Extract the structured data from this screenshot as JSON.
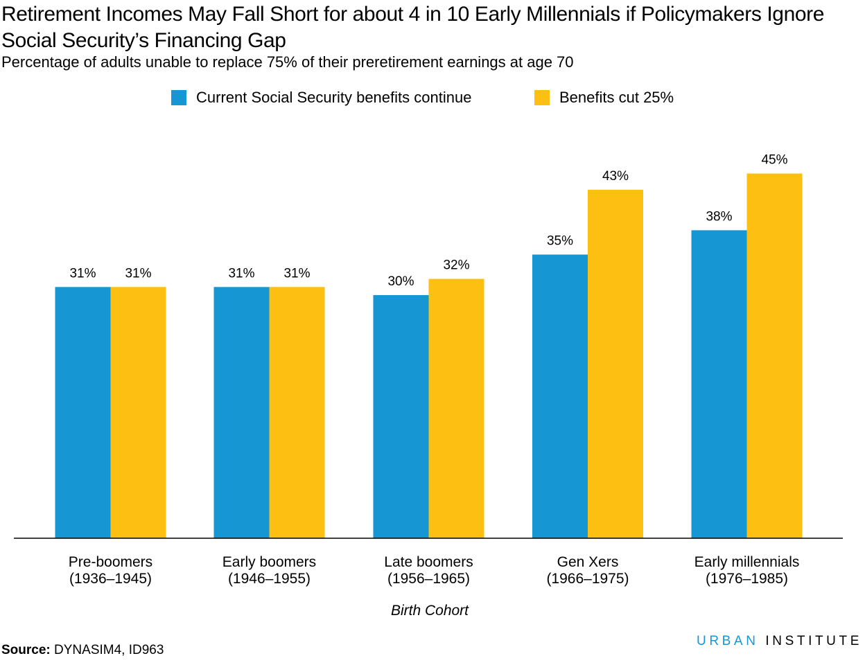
{
  "chart_data": {
    "type": "bar",
    "title": "Retirement Incomes May Fall Short for about 4 in 10 Early Millennials if Policymakers Ignore Social Security’s Financing Gap",
    "subtitle": "Percentage of adults unable to replace 75% of their preretirement earnings at age 70",
    "xlabel": "Birth Cohort",
    "ylabel": "",
    "ylim": [
      0,
      50
    ],
    "grid": false,
    "legend_position": "top",
    "categories": [
      {
        "name": "Pre-boomers",
        "range": "(1936–1945)"
      },
      {
        "name": "Early boomers",
        "range": "(1946–1955)"
      },
      {
        "name": "Late boomers",
        "range": "(1956–1965)"
      },
      {
        "name": "Gen Xers",
        "range": "(1966–1975)"
      },
      {
        "name": "Early millennials",
        "range": "(1976–1985)"
      }
    ],
    "series": [
      {
        "name": "Current Social Security benefits continue",
        "color": "#1696d2",
        "values": [
          31,
          31,
          30,
          35,
          38
        ],
        "labels": [
          "31%",
          "31%",
          "30%",
          "35%",
          "38%"
        ]
      },
      {
        "name": "Benefits cut 25%",
        "color": "#fdbf11",
        "values": [
          31,
          31,
          32,
          43,
          45
        ],
        "labels": [
          "31%",
          "31%",
          "32%",
          "43%",
          "45%"
        ]
      }
    ]
  },
  "source": {
    "label": "Source:",
    "text": " DYNASIM4, ID963"
  },
  "brand": {
    "urban": "URBAN",
    "institute": "INSTITUTE"
  }
}
